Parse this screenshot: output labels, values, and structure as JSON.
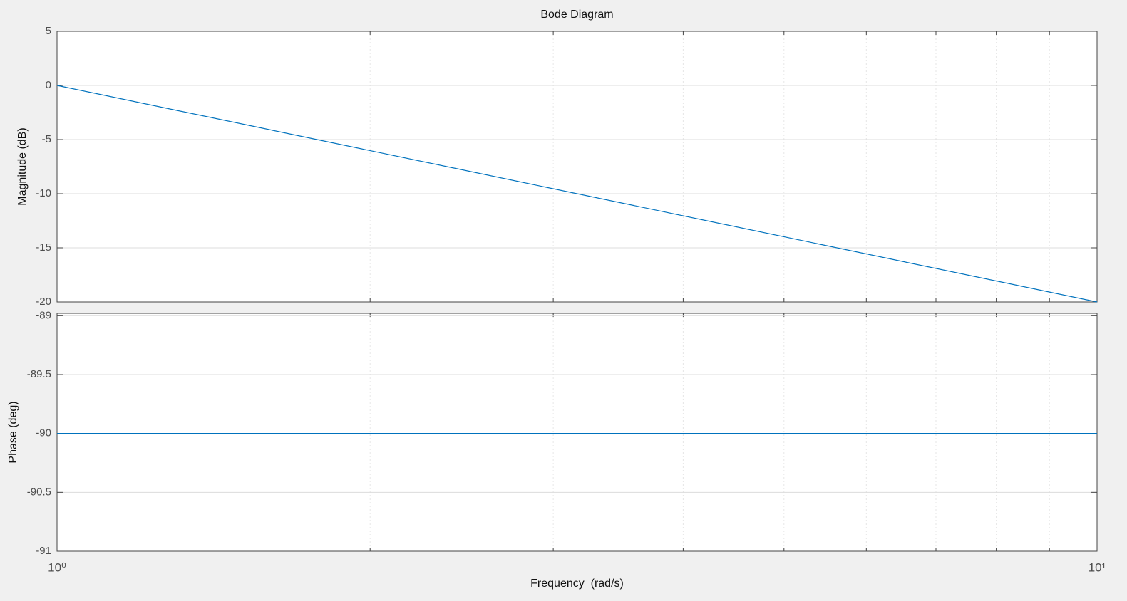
{
  "chart_data": [
    {
      "type": "line",
      "title": "Bode Diagram",
      "ylabel": "Magnitude (dB)",
      "xscale": "log",
      "xlim": [
        1,
        10
      ],
      "xminorticks": [
        2,
        3,
        4,
        5,
        6,
        7,
        8,
        9
      ],
      "ylim": [
        -20,
        5
      ],
      "yticks": [
        -20,
        -15,
        -10,
        -5,
        0,
        5
      ],
      "grid": true,
      "x": [
        1,
        10
      ],
      "series": [
        {
          "color": "#0072bd",
          "values": [
            0,
            -20
          ]
        }
      ]
    },
    {
      "type": "line",
      "ylabel": "Phase (deg)",
      "xlabel": "Frequency  (rad/s)",
      "xscale": "log",
      "xlim": [
        1,
        10
      ],
      "xticks": [
        {
          "value": 1,
          "label": "10⁰"
        },
        {
          "value": 10,
          "label": "10¹"
        }
      ],
      "xminorticks": [
        2,
        3,
        4,
        5,
        6,
        7,
        8,
        9
      ],
      "ylim": [
        -91,
        -88.98
      ],
      "yticks": [
        -91,
        -90.5,
        -90,
        -89.5,
        -89
      ],
      "grid": true,
      "x": [
        1,
        10
      ],
      "series": [
        {
          "color": "#0072bd",
          "values": [
            -90,
            -90
          ]
        }
      ]
    }
  ]
}
